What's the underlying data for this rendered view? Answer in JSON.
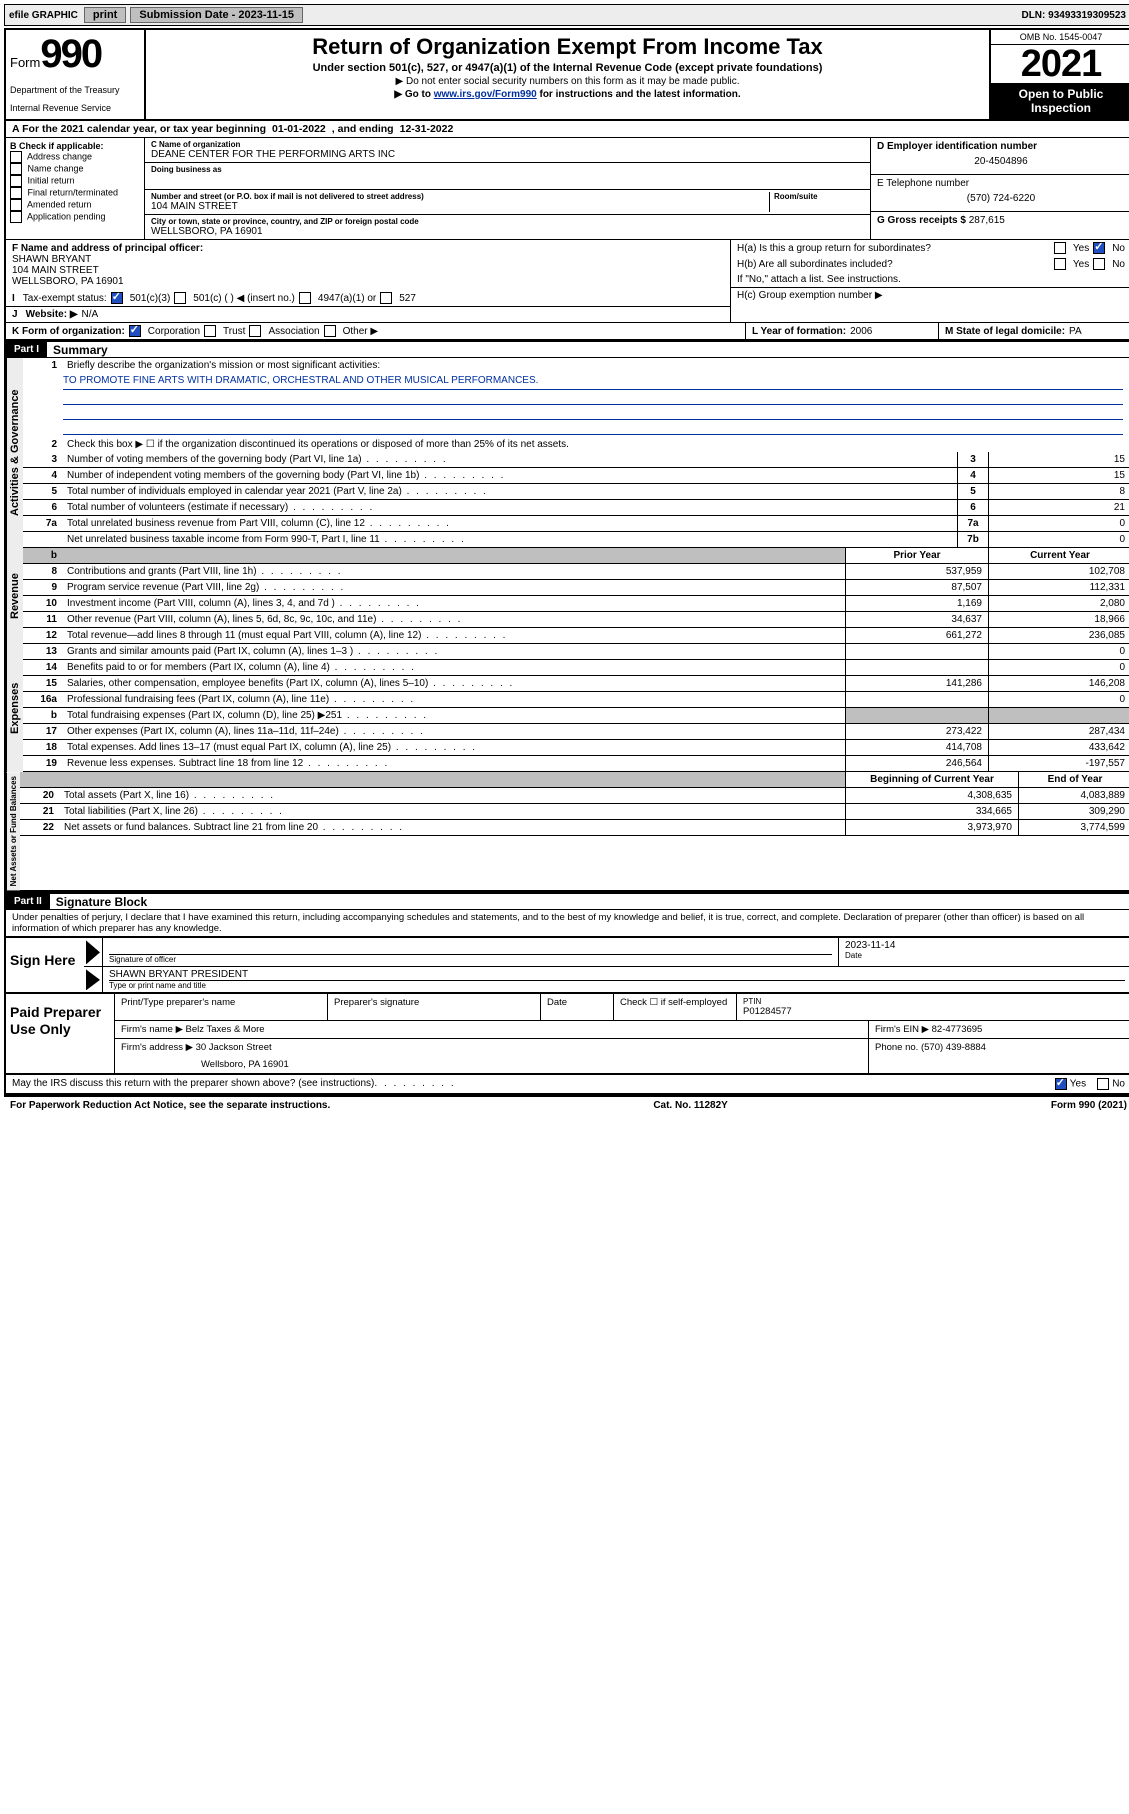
{
  "topbar": {
    "efile": "efile GRAPHIC",
    "print": "print",
    "sub_label": "Submission Date - 2023-11-15",
    "dln": "DLN: 93493319309523"
  },
  "header": {
    "form_label": "Form",
    "form_num": "990",
    "dept": "Department of the Treasury",
    "irs": "Internal Revenue Service",
    "title": "Return of Organization Exempt From Income Tax",
    "sub": "Under section 501(c), 527, or 4947(a)(1) of the Internal Revenue Code (except private foundations)",
    "note1": "▶ Do not enter social security numbers on this form as it may be made public.",
    "note2_pre": "▶ Go to ",
    "note2_link": "www.irs.gov/Form990",
    "note2_post": " for instructions and the latest information.",
    "omb": "OMB No. 1545-0047",
    "year": "2021",
    "open": "Open to Public Inspection"
  },
  "taxyear": {
    "prefix": "A For the 2021 calendar year, or tax year beginning ",
    "begin": "01-01-2022",
    "mid": ", and ending ",
    "end": "12-31-2022"
  },
  "blockB": {
    "title": "B Check if applicable:",
    "opts": [
      "Address change",
      "Name change",
      "Initial return",
      "Final return/terminated",
      "Amended return",
      "Application pending"
    ]
  },
  "blockC": {
    "name_lbl": "C Name of organization",
    "name": "DEANE CENTER FOR THE PERFORMING ARTS INC",
    "dba_lbl": "Doing business as",
    "addr_lbl": "Number and street (or P.O. box if mail is not delivered to street address)",
    "room_lbl": "Room/suite",
    "addr": "104 MAIN STREET",
    "city_lbl": "City or town, state or province, country, and ZIP or foreign postal code",
    "city": "WELLSBORO, PA  16901"
  },
  "blockD": {
    "lbl": "D Employer identification number",
    "val": "20-4504896"
  },
  "blockE": {
    "lbl": "E Telephone number",
    "val": "(570) 724-6220"
  },
  "blockG": {
    "lbl": "G Gross receipts $",
    "val": "287,615"
  },
  "blockF": {
    "lbl": "F Name and address of principal officer:",
    "name": "SHAWN BRYANT",
    "addr1": "104 MAIN STREET",
    "addr2": "WELLSBORO, PA  16901"
  },
  "blockH": {
    "a": "H(a)  Is this a group return for subordinates?",
    "b": "H(b)  Are all subordinates included?",
    "note": "If \"No,\" attach a list. See instructions.",
    "c": "H(c)  Group exemption number ▶",
    "yes": "Yes",
    "no": "No"
  },
  "rowI": {
    "lbl": "Tax-exempt status:",
    "o1": "501(c)(3)",
    "o2": "501(c) (   ) ◀ (insert no.)",
    "o3": "4947(a)(1) or",
    "o4": "527"
  },
  "rowJ": {
    "lbl": "Website: ▶",
    "val": "N/A"
  },
  "rowK": {
    "lbl": "K Form of organization:",
    "o1": "Corporation",
    "o2": "Trust",
    "o3": "Association",
    "o4": "Other ▶"
  },
  "rowL": {
    "lbl": "L Year of formation:",
    "val": "2006"
  },
  "rowM": {
    "lbl": "M State of legal domicile:",
    "val": "PA"
  },
  "part1": {
    "hdr": "Part I",
    "title": "Summary"
  },
  "summary": {
    "l1_lbl": "Briefly describe the organization's mission or most significant activities:",
    "l1_txt": "TO PROMOTE FINE ARTS WITH DRAMATIC, ORCHESTRAL AND OTHER MUSICAL PERFORMANCES.",
    "l2": "Check this box ▶ ☐  if the organization discontinued its operations or disposed of more than 25% of its net assets.",
    "rows": [
      {
        "n": "3",
        "d": "Number of voting members of the governing body (Part VI, line 1a)",
        "b": "3",
        "v": "15"
      },
      {
        "n": "4",
        "d": "Number of independent voting members of the governing body (Part VI, line 1b)",
        "b": "4",
        "v": "15"
      },
      {
        "n": "5",
        "d": "Total number of individuals employed in calendar year 2021 (Part V, line 2a)",
        "b": "5",
        "v": "8"
      },
      {
        "n": "6",
        "d": "Total number of volunteers (estimate if necessary)",
        "b": "6",
        "v": "21"
      },
      {
        "n": "7a",
        "d": "Total unrelated business revenue from Part VIII, column (C), line 12",
        "b": "7a",
        "v": "0"
      },
      {
        "n": "",
        "d": "Net unrelated business taxable income from Form 990-T, Part I, line 11",
        "b": "7b",
        "v": "0"
      }
    ],
    "hdr_prior": "Prior Year",
    "hdr_curr": "Current Year",
    "rev": [
      {
        "n": "8",
        "d": "Contributions and grants (Part VIII, line 1h)",
        "p": "537,959",
        "c": "102,708"
      },
      {
        "n": "9",
        "d": "Program service revenue (Part VIII, line 2g)",
        "p": "87,507",
        "c": "112,331"
      },
      {
        "n": "10",
        "d": "Investment income (Part VIII, column (A), lines 3, 4, and 7d )",
        "p": "1,169",
        "c": "2,080"
      },
      {
        "n": "11",
        "d": "Other revenue (Part VIII, column (A), lines 5, 6d, 8c, 9c, 10c, and 11e)",
        "p": "34,637",
        "c": "18,966"
      },
      {
        "n": "12",
        "d": "Total revenue—add lines 8 through 11 (must equal Part VIII, column (A), line 12)",
        "p": "661,272",
        "c": "236,085"
      }
    ],
    "exp": [
      {
        "n": "13",
        "d": "Grants and similar amounts paid (Part IX, column (A), lines 1–3 )",
        "p": "",
        "c": "0"
      },
      {
        "n": "14",
        "d": "Benefits paid to or for members (Part IX, column (A), line 4)",
        "p": "",
        "c": "0"
      },
      {
        "n": "15",
        "d": "Salaries, other compensation, employee benefits (Part IX, column (A), lines 5–10)",
        "p": "141,286",
        "c": "146,208"
      },
      {
        "n": "16a",
        "d": "Professional fundraising fees (Part IX, column (A), line 11e)",
        "p": "",
        "c": "0"
      },
      {
        "n": "b",
        "d": "Total fundraising expenses (Part IX, column (D), line 25) ▶251",
        "p": "gray",
        "c": "gray"
      },
      {
        "n": "17",
        "d": "Other expenses (Part IX, column (A), lines 11a–11d, 11f–24e)",
        "p": "273,422",
        "c": "287,434"
      },
      {
        "n": "18",
        "d": "Total expenses. Add lines 13–17 (must equal Part IX, column (A), line 25)",
        "p": "414,708",
        "c": "433,642"
      },
      {
        "n": "19",
        "d": "Revenue less expenses. Subtract line 18 from line 12",
        "p": "246,564",
        "c": "-197,557"
      }
    ],
    "hdr_beg": "Beginning of Current Year",
    "hdr_end": "End of Year",
    "net": [
      {
        "n": "20",
        "d": "Total assets (Part X, line 16)",
        "p": "4,308,635",
        "c": "4,083,889"
      },
      {
        "n": "21",
        "d": "Total liabilities (Part X, line 26)",
        "p": "334,665",
        "c": "309,290"
      },
      {
        "n": "22",
        "d": "Net assets or fund balances. Subtract line 21 from line 20",
        "p": "3,973,970",
        "c": "3,774,599"
      }
    ],
    "tabs": {
      "gov": "Activities & Governance",
      "rev": "Revenue",
      "exp": "Expenses",
      "net": "Net Assets or Fund Balances"
    }
  },
  "part2": {
    "hdr": "Part II",
    "title": "Signature Block"
  },
  "sig": {
    "decl": "Under penalties of perjury, I declare that I have examined this return, including accompanying schedules and statements, and to the best of my knowledge and belief, it is true, correct, and complete. Declaration of preparer (other than officer) is based on all information of which preparer has any knowledge.",
    "here": "Sign Here",
    "sig_lbl": "Signature of officer",
    "date_lbl": "Date",
    "date": "2023-11-14",
    "name": "SHAWN BRYANT PRESIDENT",
    "name_lbl": "Type or print name and title"
  },
  "prep": {
    "label": "Paid Preparer Use Only",
    "h1": "Print/Type preparer's name",
    "h2": "Preparer's signature",
    "h3": "Date",
    "h4": "Check ☐ if self-employed",
    "h5": "PTIN",
    "ptin": "P01284577",
    "firm_lbl": "Firm's name   ▶",
    "firm": "Belz Taxes & More",
    "ein_lbl": "Firm's EIN ▶",
    "ein": "82-4773695",
    "addr_lbl": "Firm's address ▶",
    "addr1": "30 Jackson Street",
    "addr2": "Wellsboro, PA  16901",
    "ph_lbl": "Phone no.",
    "ph": "(570) 439-8884"
  },
  "footer": {
    "discuss": "May the IRS discuss this return with the preparer shown above? (see instructions)",
    "yes": "Yes",
    "no": "No",
    "pra": "For Paperwork Reduction Act Notice, see the separate instructions.",
    "cat": "Cat. No. 11282Y",
    "form": "Form 990 (2021)"
  }
}
